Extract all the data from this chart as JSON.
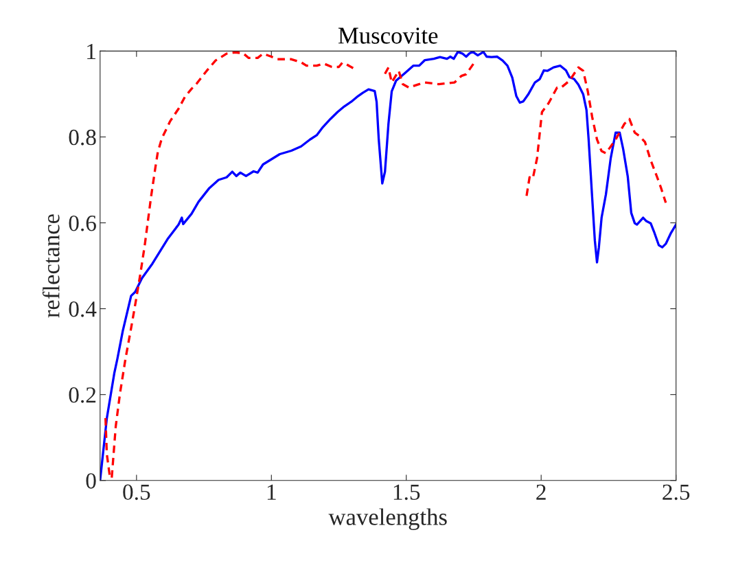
{
  "chart_data": {
    "type": "line",
    "title": "Muscovite",
    "xlabel": "wavelengths",
    "ylabel": "reflectance",
    "xlim": [
      0.365,
      2.5
    ],
    "ylim": [
      0,
      1
    ],
    "xticks": [
      0.5,
      1,
      1.5,
      2,
      2.5
    ],
    "yticks": [
      0,
      0.2,
      0.4,
      0.6,
      0.8,
      1
    ],
    "grid": false,
    "series": [
      {
        "color": "#0000ff",
        "line_style": "solid",
        "x": [
          0.365,
          0.39,
          0.418,
          0.429,
          0.449,
          0.48,
          0.495,
          0.52,
          0.559,
          0.615,
          0.656,
          0.668,
          0.673,
          0.704,
          0.73,
          0.77,
          0.804,
          0.834,
          0.855,
          0.87,
          0.885,
          0.906,
          0.934,
          0.949,
          0.969,
          1.0,
          1.031,
          1.074,
          1.11,
          1.143,
          1.168,
          1.191,
          1.219,
          1.245,
          1.27,
          1.296,
          1.321,
          1.339,
          1.36,
          1.383,
          1.39,
          1.398,
          1.411,
          1.421,
          1.434,
          1.446,
          1.462,
          1.492,
          1.526,
          1.548,
          1.569,
          1.602,
          1.625,
          1.651,
          1.663,
          1.676,
          1.691,
          1.709,
          1.722,
          1.735,
          1.747,
          1.765,
          1.786,
          1.798,
          1.816,
          1.837,
          1.857,
          1.875,
          1.893,
          1.908,
          1.921,
          1.934,
          1.952,
          1.977,
          1.995,
          2.01,
          2.023,
          2.046,
          2.071,
          2.092,
          2.105,
          2.122,
          2.138,
          2.156,
          2.168,
          2.176,
          2.189,
          2.199,
          2.207,
          2.214,
          2.224,
          2.24,
          2.258,
          2.276,
          2.291,
          2.304,
          2.321,
          2.334,
          2.347,
          2.355,
          2.378,
          2.39,
          2.406,
          2.418,
          2.436,
          2.449,
          2.462,
          2.48,
          2.5
        ],
        "values": [
          0,
          0.145,
          0.251,
          0.283,
          0.348,
          0.43,
          0.439,
          0.471,
          0.505,
          0.562,
          0.596,
          0.612,
          0.597,
          0.621,
          0.649,
          0.681,
          0.7,
          0.706,
          0.719,
          0.709,
          0.717,
          0.709,
          0.72,
          0.717,
          0.736,
          0.748,
          0.76,
          0.768,
          0.778,
          0.794,
          0.804,
          0.823,
          0.842,
          0.858,
          0.871,
          0.882,
          0.895,
          0.903,
          0.911,
          0.907,
          0.882,
          0.794,
          0.692,
          0.719,
          0.831,
          0.906,
          0.931,
          0.947,
          0.966,
          0.966,
          0.979,
          0.982,
          0.986,
          0.982,
          0.987,
          0.982,
          0.998,
          0.994,
          0.987,
          0.995,
          0.998,
          0.99,
          0.998,
          0.987,
          0.986,
          0.987,
          0.978,
          0.966,
          0.938,
          0.895,
          0.88,
          0.883,
          0.899,
          0.927,
          0.935,
          0.955,
          0.954,
          0.962,
          0.966,
          0.955,
          0.939,
          0.935,
          0.922,
          0.899,
          0.863,
          0.794,
          0.66,
          0.559,
          0.508,
          0.543,
          0.612,
          0.666,
          0.751,
          0.81,
          0.81,
          0.772,
          0.708,
          0.623,
          0.599,
          0.596,
          0.612,
          0.604,
          0.599,
          0.58,
          0.548,
          0.543,
          0.551,
          0.575,
          0.596
        ]
      },
      {
        "color": "#ff0000",
        "line_style": "dashed",
        "x": [
          0.385,
          0.39,
          0.401,
          0.408,
          0.423,
          0.439,
          0.459,
          0.48,
          0.5,
          0.515,
          0.531,
          0.554,
          0.569,
          0.579,
          0.594,
          0.625,
          0.656,
          0.679,
          0.704,
          0.724,
          0.76,
          0.793,
          0.834,
          0.865,
          0.895,
          0.916,
          0.949,
          0.969,
          1.0,
          1.02,
          1.074,
          1.11,
          1.13,
          1.168,
          1.194,
          1.224,
          1.25,
          1.263,
          1.276,
          1.309,
          1.37,
          1.421,
          1.434,
          1.446,
          1.472,
          1.487,
          1.51,
          1.543,
          1.569,
          1.62,
          1.679,
          1.704,
          1.722,
          1.753,
          1.85,
          1.946,
          1.957,
          1.969,
          1.985,
          2.003,
          2.028,
          2.059,
          2.074,
          2.105,
          2.138,
          2.156,
          2.173,
          2.189,
          2.207,
          2.224,
          2.24,
          2.276,
          2.309,
          2.327,
          2.347,
          2.365,
          2.385,
          2.406,
          2.429,
          2.444,
          2.462
        ],
        "values": [
          0.145,
          0.061,
          0.01,
          0.005,
          0.126,
          0.204,
          0.283,
          0.355,
          0.427,
          0.484,
          0.55,
          0.661,
          0.725,
          0.765,
          0.797,
          0.837,
          0.866,
          0.893,
          0.912,
          0.925,
          0.954,
          0.978,
          0.994,
          0.997,
          0.995,
          0.984,
          0.984,
          0.994,
          0.987,
          0.981,
          0.981,
          0.974,
          0.966,
          0.966,
          0.971,
          0.963,
          0.963,
          0.973,
          0.97,
          0.958,
          null,
          0.947,
          0.962,
          0.927,
          0.954,
          0.923,
          0.915,
          0.922,
          0.927,
          0.923,
          0.927,
          0.942,
          0.946,
          0.974,
          null,
          0.663,
          0.706,
          0.703,
          0.751,
          0.858,
          0.879,
          0.915,
          0.915,
          0.931,
          0.962,
          0.954,
          0.906,
          0.847,
          0.794,
          0.767,
          0.762,
          0.794,
          0.831,
          0.842,
          0.81,
          0.802,
          0.788,
          0.746,
          0.708,
          0.682,
          0.647
        ]
      }
    ]
  }
}
